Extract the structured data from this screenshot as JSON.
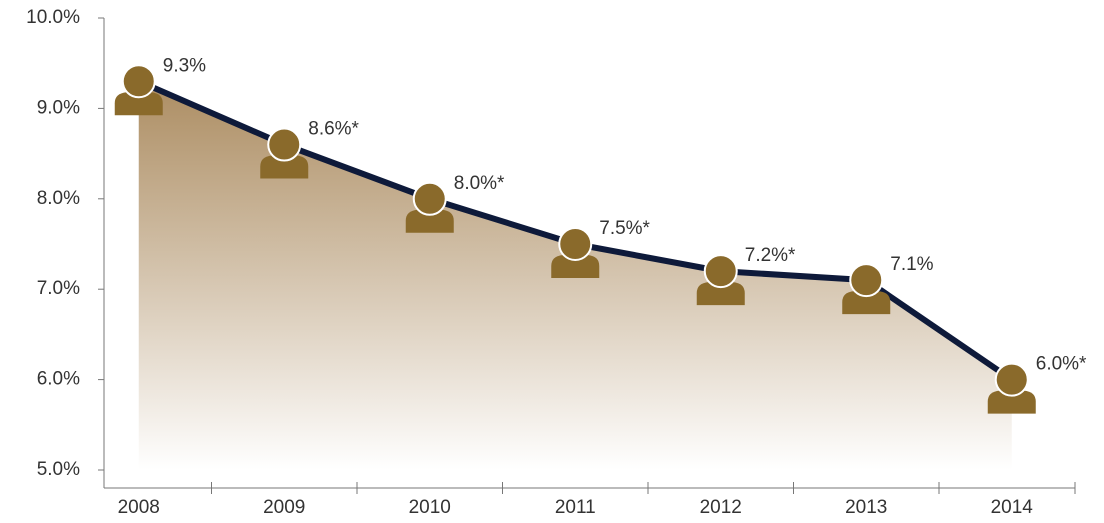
{
  "chart_data": {
    "type": "line",
    "categories": [
      "2008",
      "2009",
      "2010",
      "2011",
      "2012",
      "2013",
      "2014"
    ],
    "values": [
      9.3,
      8.6,
      8.0,
      7.5,
      7.2,
      7.1,
      6.0
    ],
    "value_labels": [
      "9.3%",
      "8.6%*",
      "8.0%*",
      "7.5%*",
      "7.2%*",
      "7.1%",
      "6.0%*"
    ],
    "color": "#0e1a3a",
    "marker_color": "#8a6a2b",
    "ylim": [
      5,
      10
    ],
    "yticks": [
      {
        "value": 5,
        "label": "5.0%"
      },
      {
        "value": 6,
        "label": "6.0%"
      },
      {
        "value": 7,
        "label": "7.0%"
      },
      {
        "value": 8,
        "label": "8.0%"
      },
      {
        "value": 9,
        "label": "9.0%"
      },
      {
        "value": 10,
        "label": "10.0%"
      }
    ]
  }
}
